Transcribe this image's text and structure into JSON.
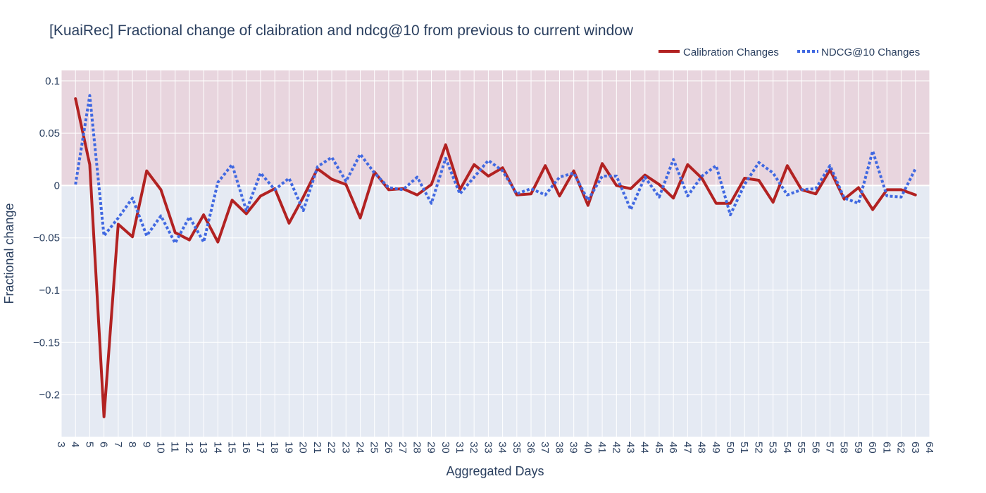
{
  "chart_data": {
    "type": "line",
    "title": "[KuaiRec] Fractional change of claibration and ndcg@10 from previous to current window",
    "xlabel": "Aggregated Days",
    "ylabel": "Fractional change",
    "xlim": [
      3,
      64
    ],
    "ylim": [
      -0.24,
      0.11
    ],
    "x_ticks": [
      3,
      4,
      5,
      6,
      7,
      8,
      9,
      10,
      11,
      12,
      13,
      14,
      15,
      16,
      17,
      18,
      19,
      20,
      21,
      22,
      23,
      24,
      25,
      26,
      27,
      28,
      29,
      30,
      31,
      32,
      33,
      34,
      35,
      36,
      37,
      38,
      39,
      40,
      41,
      42,
      43,
      44,
      45,
      46,
      47,
      48,
      49,
      50,
      51,
      52,
      53,
      54,
      55,
      56,
      57,
      58,
      59,
      60,
      61,
      62,
      63,
      64
    ],
    "y_ticks": [
      0.1,
      0.05,
      0,
      -0.05,
      -0.1,
      -0.15,
      -0.2
    ],
    "y_tick_labels": [
      "0.1",
      "0.05",
      "0",
      "−0.05",
      "−0.1",
      "−0.15",
      "−0.2"
    ],
    "grid": true,
    "legend_position": "top-right",
    "background_bands": [
      {
        "from": 0,
        "to": 0.11,
        "color": "#e8d5de"
      },
      {
        "from": -0.24,
        "to": 0,
        "color": "#e5eaf3"
      }
    ],
    "x": [
      4,
      5,
      6,
      7,
      8,
      9,
      10,
      11,
      12,
      13,
      14,
      15,
      16,
      17,
      18,
      19,
      20,
      21,
      22,
      23,
      24,
      25,
      26,
      27,
      28,
      29,
      30,
      31,
      32,
      33,
      34,
      35,
      36,
      37,
      38,
      39,
      40,
      41,
      42,
      43,
      44,
      45,
      46,
      47,
      48,
      49,
      50,
      51,
      52,
      53,
      54,
      55,
      56,
      57,
      58,
      59,
      60,
      61,
      62,
      63
    ],
    "series": [
      {
        "name": "Calibration Changes",
        "color": "#b22222",
        "dash": "solid",
        "values": [
          0.083,
          0.02,
          -0.221,
          -0.037,
          -0.049,
          0.014,
          -0.004,
          -0.045,
          -0.052,
          -0.028,
          -0.054,
          -0.014,
          -0.027,
          -0.01,
          -0.003,
          -0.036,
          -0.011,
          0.016,
          0.006,
          0.001,
          -0.031,
          0.013,
          -0.004,
          -0.003,
          -0.009,
          0.001,
          0.039,
          -0.004,
          0.02,
          0.009,
          0.017,
          -0.009,
          -0.008,
          0.019,
          -0.01,
          0.014,
          -0.019,
          0.021,
          0.0,
          -0.003,
          0.01,
          0.001,
          -0.012,
          0.02,
          0.007,
          -0.017,
          -0.017,
          0.007,
          0.005,
          -0.016,
          0.019,
          -0.004,
          -0.008,
          0.015,
          -0.013,
          -0.002,
          -0.023,
          -0.004,
          -0.004,
          -0.009
        ]
      },
      {
        "name": "NDCG@10 Changes",
        "color": "#4169e1",
        "dash": "dot",
        "values": [
          0.001,
          0.086,
          -0.048,
          -0.031,
          -0.012,
          -0.048,
          -0.029,
          -0.055,
          -0.03,
          -0.054,
          0.003,
          0.02,
          -0.024,
          0.012,
          -0.004,
          0.007,
          -0.024,
          0.018,
          0.027,
          0.004,
          0.03,
          0.012,
          -0.002,
          -0.004,
          0.008,
          -0.017,
          0.026,
          -0.008,
          0.008,
          0.024,
          0.014,
          -0.008,
          -0.003,
          -0.009,
          0.008,
          0.012,
          -0.014,
          0.009,
          0.009,
          -0.023,
          0.008,
          -0.011,
          0.025,
          -0.01,
          0.009,
          0.019,
          -0.028,
          0.001,
          0.022,
          0.012,
          -0.009,
          -0.004,
          -0.003,
          0.019,
          -0.012,
          -0.017,
          0.033,
          -0.01,
          -0.011,
          0.016
        ]
      }
    ]
  }
}
